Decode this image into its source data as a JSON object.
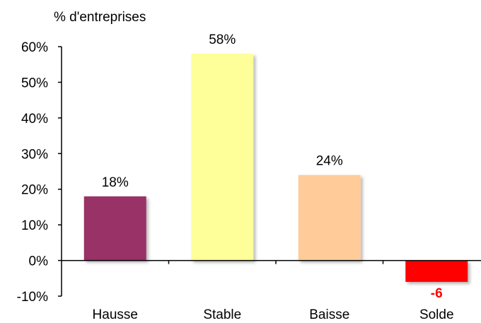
{
  "chart_data": {
    "type": "bar",
    "ylabel": "% d'entreprises",
    "ylim": [
      -10,
      60
    ],
    "yticks": [
      "60%",
      "50%",
      "40%",
      "30%",
      "20%",
      "10%",
      "0%",
      "-10%"
    ],
    "categories": [
      "Hausse",
      "Stable",
      "Baisse",
      "Solde"
    ],
    "values": [
      18,
      58,
      24,
      -6
    ],
    "data_labels": [
      "18%",
      "58%",
      "24%",
      "-6"
    ],
    "colors": [
      "#993366",
      "#FFFF99",
      "#FFCC99",
      "#FF0000"
    ],
    "data_label_colors": [
      "#000000",
      "#000000",
      "#000000",
      "#FF0000"
    ],
    "grid": false,
    "legend": "none"
  }
}
